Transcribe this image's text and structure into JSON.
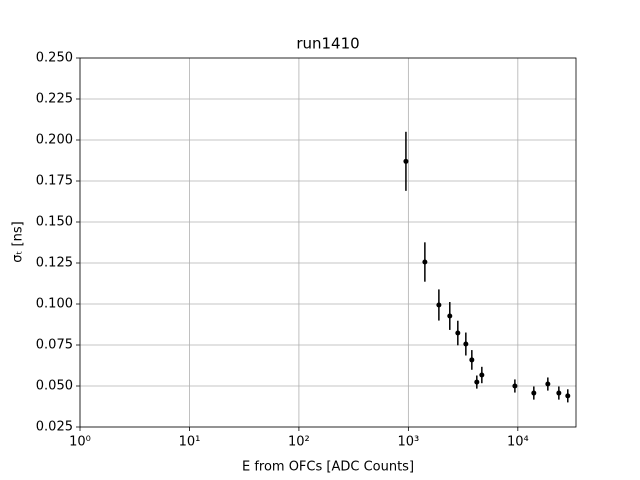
{
  "chart_data": {
    "type": "errorbar",
    "title": "run1410",
    "xlabel": "E from OFCs [ADC Counts]",
    "ylabel": "σₜ [ns]",
    "x": [
      950,
      1415,
      1900,
      2390,
      2830,
      3350,
      3800,
      4220,
      4690,
      9400,
      14000,
      18800,
      23700,
      28600
    ],
    "y": [
      0.187,
      0.1256,
      0.0994,
      0.0927,
      0.0823,
      0.0756,
      0.0659,
      0.0524,
      0.0567,
      0.05,
      0.0457,
      0.0512,
      0.0457,
      0.044
    ],
    "yerr": [
      0.018,
      0.012,
      0.0095,
      0.0085,
      0.0075,
      0.007,
      0.006,
      0.004,
      0.005,
      0.004,
      0.004,
      0.004,
      0.004,
      0.004
    ],
    "color": "#000000",
    "xscale": "log",
    "grid": true,
    "xlim": [
      1,
      34000
    ],
    "xticks": [
      {
        "value": 1,
        "label": "10⁰"
      },
      {
        "value": 10,
        "label": "10¹"
      },
      {
        "value": 100,
        "label": "10²"
      },
      {
        "value": 1000,
        "label": "10³"
      },
      {
        "value": 10000,
        "label": "10⁴"
      }
    ],
    "ylim": [
      0.025,
      0.25
    ],
    "yticks": [
      0.025,
      {
        "value": 0.05,
        "label": "0.050"
      },
      0.075,
      {
        "value": 0.1,
        "label": "0.100"
      },
      0.125,
      {
        "value": 0.15,
        "label": "0.150"
      },
      0.175,
      {
        "value": 0.2,
        "label": "0.200"
      },
      0.225,
      {
        "value": 0.25,
        "label": "0.250"
      }
    ]
  }
}
